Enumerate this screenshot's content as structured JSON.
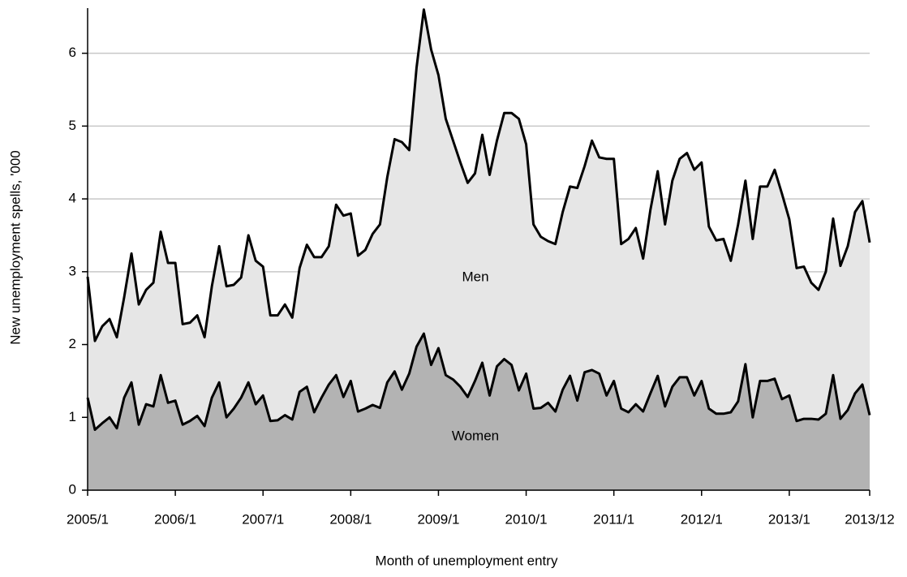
{
  "chart_data": {
    "type": "area",
    "x_label": "Month of unemployment entry",
    "y_label": "New unemployment spells, '000",
    "annotations": [
      "Men",
      "Women"
    ],
    "categories": [
      "2005/1",
      null,
      null,
      null,
      null,
      null,
      null,
      null,
      null,
      null,
      null,
      null,
      "2006/1",
      null,
      null,
      null,
      null,
      null,
      null,
      null,
      null,
      null,
      null,
      null,
      "2007/1",
      null,
      null,
      null,
      null,
      null,
      null,
      null,
      null,
      null,
      null,
      null,
      "2008/1",
      null,
      null,
      null,
      null,
      null,
      null,
      null,
      null,
      null,
      null,
      null,
      "2009/1",
      null,
      null,
      null,
      null,
      null,
      null,
      null,
      null,
      null,
      null,
      null,
      "2010/1",
      null,
      null,
      null,
      null,
      null,
      null,
      null,
      null,
      null,
      null,
      null,
      "2011/1",
      null,
      null,
      null,
      null,
      null,
      null,
      null,
      null,
      null,
      null,
      null,
      "2012/1",
      null,
      null,
      null,
      null,
      null,
      null,
      null,
      null,
      null,
      null,
      null,
      "2013/1",
      null,
      null,
      null,
      null,
      null,
      null,
      null,
      null,
      null,
      null,
      "2013/12"
    ],
    "series": [
      {
        "name": "Men",
        "color": "#e6e6e6",
        "values": [
          2.93,
          2.05,
          2.25,
          2.35,
          2.1,
          2.65,
          3.25,
          2.55,
          2.75,
          2.85,
          3.55,
          3.12,
          3.12,
          2.28,
          2.3,
          2.4,
          2.1,
          2.8,
          3.35,
          2.8,
          2.82,
          2.92,
          3.5,
          3.15,
          3.07,
          2.4,
          2.4,
          2.55,
          2.37,
          3.05,
          3.37,
          3.2,
          3.2,
          3.35,
          3.92,
          3.77,
          3.8,
          3.22,
          3.3,
          3.52,
          3.65,
          4.3,
          4.82,
          4.78,
          4.67,
          5.8,
          6.6,
          6.05,
          5.7,
          5.1,
          4.8,
          4.5,
          4.22,
          4.35,
          4.88,
          4.33,
          4.8,
          5.18,
          5.18,
          5.1,
          4.75,
          3.65,
          3.48,
          3.42,
          3.38,
          3.82,
          4.17,
          4.15,
          4.45,
          4.8,
          4.57,
          4.55,
          4.55,
          3.38,
          3.45,
          3.6,
          3.18,
          3.85,
          4.38,
          3.65,
          4.25,
          4.55,
          4.63,
          4.4,
          4.5,
          3.62,
          3.43,
          3.45,
          3.15,
          3.65,
          4.25,
          3.45,
          4.17,
          4.17,
          4.4,
          4.07,
          3.72,
          3.05,
          3.07,
          2.85,
          2.75,
          3.0,
          3.73,
          3.08,
          3.35,
          3.82,
          3.97,
          3.4
        ]
      },
      {
        "name": "Women",
        "color": "#b3b3b3",
        "values": [
          1.27,
          0.83,
          0.92,
          1.0,
          0.85,
          1.27,
          1.48,
          0.9,
          1.18,
          1.15,
          1.58,
          1.2,
          1.23,
          0.9,
          0.95,
          1.02,
          0.88,
          1.27,
          1.48,
          1.0,
          1.12,
          1.27,
          1.48,
          1.18,
          1.3,
          0.95,
          0.96,
          1.03,
          0.97,
          1.35,
          1.42,
          1.07,
          1.27,
          1.45,
          1.58,
          1.28,
          1.5,
          1.08,
          1.12,
          1.17,
          1.13,
          1.48,
          1.63,
          1.38,
          1.6,
          1.97,
          2.15,
          1.72,
          1.95,
          1.58,
          1.52,
          1.42,
          1.28,
          1.5,
          1.75,
          1.3,
          1.7,
          1.8,
          1.72,
          1.37,
          1.6,
          1.12,
          1.13,
          1.2,
          1.08,
          1.38,
          1.57,
          1.23,
          1.62,
          1.65,
          1.6,
          1.3,
          1.5,
          1.12,
          1.07,
          1.18,
          1.08,
          1.33,
          1.57,
          1.15,
          1.42,
          1.55,
          1.55,
          1.3,
          1.5,
          1.12,
          1.05,
          1.05,
          1.07,
          1.22,
          1.73,
          1.0,
          1.5,
          1.5,
          1.53,
          1.25,
          1.3,
          0.95,
          0.98,
          0.98,
          0.97,
          1.05,
          1.58,
          0.98,
          1.1,
          1.33,
          1.45,
          1.03
        ]
      }
    ],
    "ylim": [
      0,
      6.62
    ],
    "yticks": [
      0,
      1,
      2,
      3,
      4,
      5,
      6
    ],
    "grid": true,
    "line_color": "#000000"
  }
}
